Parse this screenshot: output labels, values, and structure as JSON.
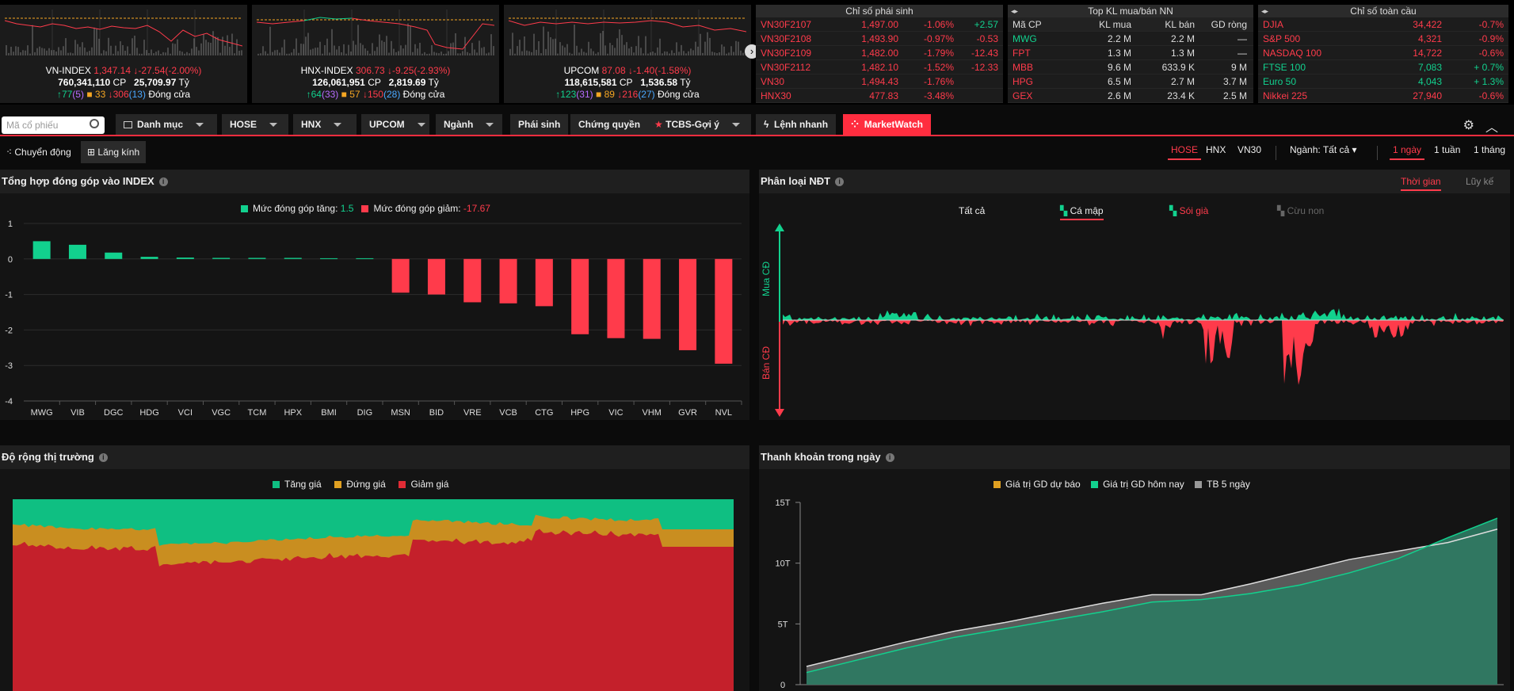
{
  "indices": [
    {
      "name": "VN-INDEX",
      "value": "1,347.14",
      "change": "↓-27.54(-2.00%)",
      "volume": "760,341,110",
      "vol_unit": "CP",
      "turnover": "25,709.97",
      "turn_unit": "Tỷ",
      "up": "↑77",
      "up_ceiling": "(5)",
      "ref": "33",
      "down": "↓306",
      "down_floor": "(13)",
      "status": "Đóng cửa"
    },
    {
      "name": "HNX-INDEX",
      "value": "306.73",
      "change": "↓-9.25(-2.93%)",
      "volume": "126,061,951",
      "vol_unit": "CP",
      "turnover": "2,819.69",
      "turn_unit": "Tỷ",
      "up": "↑64",
      "up_ceiling": "(33)",
      "ref": "57",
      "down": "↓150",
      "down_floor": "(28)",
      "status": "Đóng cửa"
    },
    {
      "name": "UPCOM",
      "value": "87.08",
      "change": "↓-1.40(-1.58%)",
      "volume": "118,615,581",
      "vol_unit": "CP",
      "turnover": "1,536.58",
      "turn_unit": "Tỷ",
      "up": "↑123",
      "up_ceiling": "(31)",
      "ref": "89",
      "down": "↓216",
      "down_floor": "(27)",
      "status": "Đóng cửa"
    }
  ],
  "derivatives": {
    "title": "Chỉ số phái sinh",
    "rows": [
      {
        "code": "VN30F2107",
        "price": "1,497.00",
        "pct": "-1.06%",
        "chg": "+2.57"
      },
      {
        "code": "VN30F2108",
        "price": "1,493.90",
        "pct": "-0.97%",
        "chg": "-0.53"
      },
      {
        "code": "VN30F2109",
        "price": "1,482.00",
        "pct": "-1.79%",
        "chg": "-12.43"
      },
      {
        "code": "VN30F2112",
        "price": "1,482.10",
        "pct": "-1.52%",
        "chg": "-12.33"
      },
      {
        "code": "VN30",
        "price": "1,494.43",
        "pct": "-1.76%",
        "chg": ""
      },
      {
        "code": "HNX30",
        "price": "477.83",
        "pct": "-3.48%",
        "chg": ""
      }
    ]
  },
  "foreign": {
    "title": "Top KL mua/bán NN",
    "headers": [
      "Mã CP",
      "KL mua",
      "KL bán",
      "GD ròng"
    ],
    "rows": [
      {
        "code": "MWG",
        "buy": "2.2 M",
        "sell": "2.2 M",
        "net": "—"
      },
      {
        "code": "FPT",
        "buy": "1.3 M",
        "sell": "1.3 M",
        "net": "—"
      },
      {
        "code": "MBB",
        "buy": "9.6 M",
        "sell": "633.9 K",
        "net": "9 M"
      },
      {
        "code": "HPG",
        "buy": "6.5 M",
        "sell": "2.7 M",
        "net": "3.7 M"
      },
      {
        "code": "GEX",
        "buy": "2.6 M",
        "sell": "23.4 K",
        "net": "2.5 M"
      }
    ]
  },
  "global": {
    "title": "Chỉ số toàn cầu",
    "rows": [
      {
        "name": "DJIA",
        "value": "34,422",
        "chg": "-0.7%",
        "dir": "down"
      },
      {
        "name": "S&P 500",
        "value": "4,321",
        "chg": "-0.9%",
        "dir": "down"
      },
      {
        "name": "NASDAQ 100",
        "value": "14,722",
        "chg": "-0.6%",
        "dir": "down"
      },
      {
        "name": "FTSE 100",
        "value": "7,083",
        "chg": "+ 0.7%",
        "dir": "up"
      },
      {
        "name": "Euro 50",
        "value": "4,043",
        "chg": "+ 1.3%",
        "dir": "up"
      },
      {
        "name": "Nikkei 225",
        "value": "27,940",
        "chg": "-0.6%",
        "dir": "down"
      }
    ]
  },
  "nav": {
    "search_placeholder": "Mã cổ phiếu",
    "items": [
      "Danh mục",
      "HOSE",
      "HNX",
      "UPCOM",
      "Ngành",
      "Phái sinh",
      "Chứng quyền",
      "TCBS-Gợi ý",
      "Lệnh nhanh",
      "MarketWatch"
    ]
  },
  "view": {
    "modes": [
      "Chuyển động",
      "Lăng kính"
    ],
    "exchanges": [
      "HOSE",
      "HNX",
      "VN30"
    ],
    "sector": "Ngành: Tất cả",
    "periods": [
      "1 ngày",
      "1 tuần",
      "1 tháng"
    ]
  },
  "contrib": {
    "title": "Tổng hợp đóng góp vào INDEX",
    "legend_up": "Mức đóng góp tăng:",
    "legend_up_val": "1.5",
    "legend_down": "Mức đóng góp giảm:",
    "legend_down_val": "-17.67"
  },
  "investor": {
    "title": "Phân loại NĐT",
    "tabs": [
      "Thời gian",
      "Lũy kế"
    ],
    "filters": [
      "Tất cả",
      "Cá mập",
      "Sói già",
      "Cừu non"
    ],
    "buy_label": "Mua CĐ",
    "sell_label": "Bán CĐ"
  },
  "breadth": {
    "title": "Độ rộng thị trường",
    "legend": [
      "Tăng giá",
      "Đứng giá",
      "Giảm giá"
    ]
  },
  "liquidity": {
    "title": "Thanh khoản trong ngày",
    "legend": [
      "Giá trị GD dự báo",
      "Giá trị GD hôm nay",
      "TB 5 ngày"
    ],
    "yticks": [
      "15T",
      "10T",
      "5T",
      "0"
    ]
  },
  "colors": {
    "up": "#12d18e",
    "down": "#ff3b4b",
    "ref": "#f5a623",
    "accent": "#ff2d3f"
  },
  "chart_data": [
    {
      "type": "bar",
      "title": "Tổng hợp đóng góp vào INDEX",
      "categories": [
        "MWG",
        "VIB",
        "DGC",
        "HDG",
        "VCI",
        "VGC",
        "TCM",
        "HPX",
        "BMI",
        "DIG",
        "MSN",
        "BID",
        "VRE",
        "VCB",
        "CTG",
        "HPG",
        "VIC",
        "VHM",
        "GVR",
        "NVL"
      ],
      "values": [
        0.5,
        0.4,
        0.18,
        0.06,
        0.04,
        0.03,
        0.03,
        0.03,
        0.02,
        0.02,
        -0.95,
        -1.0,
        -1.22,
        -1.25,
        -1.33,
        -2.12,
        -2.23,
        -2.25,
        -2.57,
        -2.95
      ],
      "yticks": [
        "1",
        "0",
        "-1",
        "-2",
        "-3",
        "-4"
      ],
      "ylim": [
        -4,
        1
      ]
    },
    {
      "type": "area",
      "title": "Phân loại NĐT",
      "series": [
        {
          "name": "Mua CĐ"
        },
        {
          "name": "Bán CĐ"
        }
      ]
    },
    {
      "type": "area",
      "title": "Độ rộng thị trường",
      "series": [
        {
          "name": "Tăng giá"
        },
        {
          "name": "Đứng giá"
        },
        {
          "name": "Giảm giá"
        }
      ]
    },
    {
      "type": "line",
      "title": "Thanh khoản trong ngày",
      "ylim": [
        0,
        15
      ],
      "series": [
        {
          "name": "Giá trị GD hôm nay",
          "values": [
            1,
            2,
            3,
            3.9,
            4.6,
            5.3,
            6.0,
            6.8,
            7.0,
            7.5,
            8.2,
            9.2,
            10.4,
            12.1,
            13.7
          ]
        },
        {
          "name": "TB 5 ngày",
          "values": [
            1.5,
            2.5,
            3.5,
            4.4,
            5.1,
            5.9,
            6.7,
            7.4,
            7.4,
            8.3,
            9.3,
            10.3,
            11.0,
            11.7,
            12.8
          ]
        }
      ]
    }
  ]
}
